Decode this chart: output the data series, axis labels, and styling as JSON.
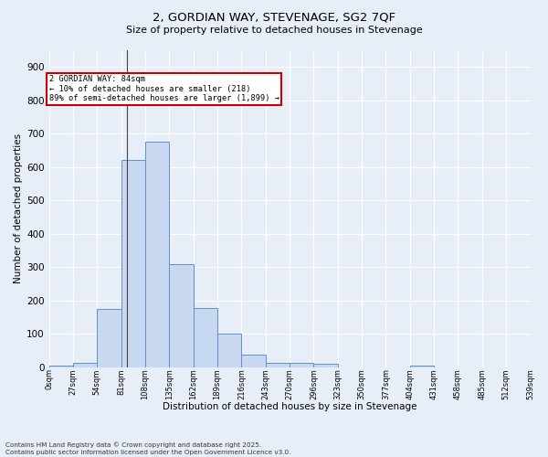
{
  "title": "2, GORDIAN WAY, STEVENAGE, SG2 7QF",
  "subtitle": "Size of property relative to detached houses in Stevenage",
  "xlabel": "Distribution of detached houses by size in Stevenage",
  "ylabel": "Number of detached properties",
  "bar_color": "#c8d8f0",
  "bar_edge_color": "#6090c8",
  "background_color": "#e8eef8",
  "grid_color": "#ffffff",
  "bar_values": [
    5,
    12,
    175,
    620,
    675,
    310,
    178,
    100,
    38,
    14,
    13,
    10,
    0,
    0,
    0,
    5,
    0,
    0,
    0,
    0
  ],
  "tick_labels": [
    "0sqm",
    "27sqm",
    "54sqm",
    "81sqm",
    "108sqm",
    "135sqm",
    "162sqm",
    "189sqm",
    "216sqm",
    "243sqm",
    "270sqm",
    "296sqm",
    "323sqm",
    "350sqm",
    "377sqm",
    "404sqm",
    "431sqm",
    "458sqm",
    "485sqm",
    "512sqm",
    "539sqm"
  ],
  "ylim": [
    0,
    950
  ],
  "yticks": [
    0,
    100,
    200,
    300,
    400,
    500,
    600,
    700,
    800,
    900
  ],
  "property_line_bin": 3,
  "annotation_title": "2 GORDIAN WAY: 84sqm",
  "annotation_line1": "← 10% of detached houses are smaller (218)",
  "annotation_line2": "89% of semi-detached houses are larger (1,899) →",
  "annotation_box_color": "#ffffff",
  "annotation_border_color": "#cc0000",
  "footer_line1": "Contains HM Land Registry data © Crown copyright and database right 2025.",
  "footer_line2": "Contains public sector information licensed under the Open Government Licence v3.0."
}
